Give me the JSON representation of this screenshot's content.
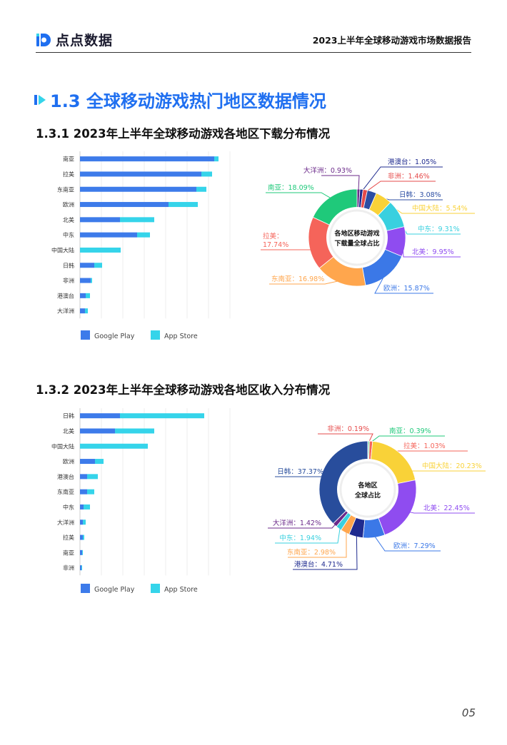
{
  "header": {
    "brand": "点点数据",
    "report_title": "2023上半年全球移动游戏市场数据报告"
  },
  "section": {
    "title": "1.3 全球移动游戏热门地区数据情况"
  },
  "colors": {
    "google_play": "#3d7bea",
    "app_store": "#35d4ea",
    "accent": "#1f6ff0"
  },
  "chart_data": [
    {
      "type": "bar",
      "title": "1.3.1  2023年上半年全球移动游戏各地区下载分布情况",
      "orientation": "horizontal",
      "stacked": true,
      "categories": [
        "南亚",
        "拉美",
        "东南亚",
        "欧洲",
        "北美",
        "中东",
        "中国大陆",
        "日韩",
        "非洲",
        "港澳台",
        "大洋洲"
      ],
      "series": [
        {
          "name": "Google Play",
          "values": [
            188,
            170,
            163,
            124,
            56,
            80,
            0,
            20,
            15,
            8,
            7
          ]
        },
        {
          "name": "App Store",
          "values": [
            6,
            15,
            14,
            41,
            48,
            18,
            57,
            11,
            2,
            6,
            4
          ]
        }
      ],
      "xlim": [
        0,
        205
      ],
      "legend_position": "bottom-left",
      "grid": true
    },
    {
      "type": "pie",
      "donut": true,
      "center_label": [
        "各地区移动游戏",
        "下载量全球占比"
      ],
      "slices": [
        {
          "label": "大洋洲",
          "value": 0.93,
          "text": "大洋洲：0.93%",
          "color": "#6b2a8a"
        },
        {
          "label": "港澳台",
          "value": 1.05,
          "text": "港澳台：1.05%",
          "color": "#1f2b8f"
        },
        {
          "label": "非洲",
          "value": 1.46,
          "text": "非洲：1.46%",
          "color": "#e64a4a"
        },
        {
          "label": "日韩",
          "value": 3.08,
          "text": "日韩：3.08%",
          "color": "#2c4ea3"
        },
        {
          "label": "中国大陆",
          "value": 5.54,
          "text": "中国大陆：5.54%",
          "color": "#f9d238"
        },
        {
          "label": "中东",
          "value": 9.31,
          "text": "中东：9.31%",
          "color": "#39d0df"
        },
        {
          "label": "北美",
          "value": 9.95,
          "text": "北美：9.95%",
          "color": "#8f4cf0"
        },
        {
          "label": "欧洲",
          "value": 15.87,
          "text": "欧洲：15.87%",
          "color": "#3b78e7"
        },
        {
          "label": "东南亚",
          "value": 16.98,
          "text": "东南亚：16.98%",
          "color": "#ffa64d"
        },
        {
          "label": "拉美",
          "value": 17.74,
          "text": "拉美：17.74%",
          "color": "#f5645a"
        },
        {
          "label": "南亚",
          "value": 18.09,
          "text": "南亚：18.09%",
          "color": "#1fc97a"
        }
      ]
    },
    {
      "type": "bar",
      "title": "1.3.2  2023年上半年全球移动游戏各地区收入分布情况",
      "orientation": "horizontal",
      "stacked": true,
      "categories": [
        "日韩",
        "北美",
        "中国大陆",
        "欧洲",
        "港澳台",
        "东南亚",
        "中东",
        "大洋洲",
        "拉美",
        "南亚",
        "非洲"
      ],
      "series": [
        {
          "name": "Google Play",
          "values": [
            56,
            49,
            0,
            21,
            10,
            10,
            5,
            4,
            4,
            3,
            2
          ]
        },
        {
          "name": "App Store",
          "values": [
            118,
            55,
            95,
            12,
            15,
            10,
            9,
            4,
            2,
            1,
            1
          ]
        }
      ],
      "xlim": [
        0,
        205
      ],
      "legend_position": "bottom-left",
      "grid": true
    },
    {
      "type": "pie",
      "donut": true,
      "center_label": [
        "各地区",
        "全球占比"
      ],
      "slices": [
        {
          "label": "非洲",
          "value": 0.19,
          "text": "非洲：0.19%",
          "color": "#e64a4a"
        },
        {
          "label": "南亚",
          "value": 0.39,
          "text": "南亚：0.39%",
          "color": "#1fc97a"
        },
        {
          "label": "拉美",
          "value": 1.03,
          "text": "拉美：1.03%",
          "color": "#f5645a"
        },
        {
          "label": "中国大陆",
          "value": 20.23,
          "text": "中国大陆：20.23%",
          "color": "#f9d238"
        },
        {
          "label": "北美",
          "value": 22.45,
          "text": "北美：22.45%",
          "color": "#8f4cf0"
        },
        {
          "label": "欧洲",
          "value": 7.29,
          "text": "欧洲：7.29%",
          "color": "#3b78e7"
        },
        {
          "label": "港澳台",
          "value": 4.71,
          "text": "港澳台：4.71%",
          "color": "#1f2b8f"
        },
        {
          "label": "东南亚",
          "value": 2.98,
          "text": "东南亚：2.98%",
          "color": "#ffa64d"
        },
        {
          "label": "中东",
          "value": 1.94,
          "text": "中东：1.94%",
          "color": "#39d0df"
        },
        {
          "label": "大洋洲",
          "value": 1.42,
          "text": "大洋洲：1.42%",
          "color": "#6b2a8a"
        },
        {
          "label": "日韩",
          "value": 37.37,
          "text": "日韩：37.37%",
          "color": "#284d9c"
        }
      ]
    }
  ],
  "page": {
    "number": "05"
  }
}
